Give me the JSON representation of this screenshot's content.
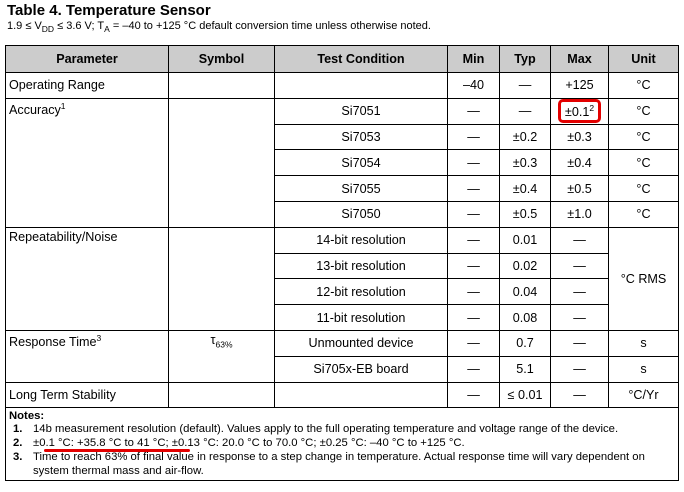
{
  "title": "Table 4. Temperature Sensor",
  "subtitle": {
    "pre": "1.9 ≤ V",
    "sub": "DD",
    "post": " ≤ 3.6 V; T",
    "sub2": "A",
    "post2": " = –40 to +125 °C default conversion time unless otherwise noted."
  },
  "headers": [
    "Parameter",
    "Symbol",
    "Test Condition",
    "Min",
    "Typ",
    "Max",
    "Unit"
  ],
  "operating_range": {
    "param": "Operating Range",
    "min": "–40",
    "typ": "—",
    "max": "+125",
    "unit": "°C"
  },
  "accuracy": {
    "param": "Accuracy",
    "sup": "1",
    "rows": [
      {
        "cond": "Si7051",
        "min": "—",
        "typ": "—",
        "max": "±0.1",
        "max_sup": "2",
        "unit": "°C"
      },
      {
        "cond": "Si7053",
        "min": "—",
        "typ": "±0.2",
        "max": "±0.3",
        "unit": "°C"
      },
      {
        "cond": "Si7054",
        "min": "—",
        "typ": "±0.3",
        "max": "±0.4",
        "unit": "°C"
      },
      {
        "cond": "Si7055",
        "min": "—",
        "typ": "±0.4",
        "max": "±0.5",
        "unit": "°C"
      },
      {
        "cond": "Si7050",
        "min": "—",
        "typ": "±0.5",
        "max": "±1.0",
        "unit": "°C"
      }
    ]
  },
  "repeatability": {
    "param": "Repeatability/Noise",
    "unit": "°C RMS",
    "rows": [
      {
        "cond": "14-bit resolution",
        "min": "—",
        "typ": "0.01",
        "max": "—"
      },
      {
        "cond": "13-bit resolution",
        "min": "—",
        "typ": "0.02",
        "max": "—"
      },
      {
        "cond": "12-bit resolution",
        "min": "—",
        "typ": "0.04",
        "max": "—"
      },
      {
        "cond": "11-bit resolution",
        "min": "—",
        "typ": "0.08",
        "max": "—"
      }
    ]
  },
  "response": {
    "param": "Response Time",
    "sup": "3",
    "symbol": "τ",
    "symbol_sub": "63%",
    "rows": [
      {
        "cond": "Unmounted device",
        "min": "—",
        "typ": "0.7",
        "max": "—",
        "unit": "s"
      },
      {
        "cond": "Si705x-EB board",
        "min": "—",
        "typ": "5.1",
        "max": "—",
        "unit": "s"
      }
    ]
  },
  "long_term": {
    "param": "Long Term Stability",
    "min": "—",
    "typ": "≤ 0.01",
    "max": "—",
    "unit": "°C/Yr"
  },
  "notes": {
    "title": "Notes:",
    "items": [
      {
        "num": "1.",
        "text": "14b measurement resolution (default). Values apply to the full operating temperature and voltage range of the device."
      },
      {
        "num": "2.",
        "underlined": "±0.1 °C: +35.8 °C to 41 °C",
        "text": "; ±0.13 °C: 20.0 °C to 70.0 °C; ±0.25 °C: –40 °C to +125 °C."
      },
      {
        "num": "3.",
        "text": "Time to reach 63% of final value in response to a step change in temperature. Actual response time will vary dependent on system thermal mass and air-flow."
      }
    ]
  },
  "highlight_color": "#e30000"
}
